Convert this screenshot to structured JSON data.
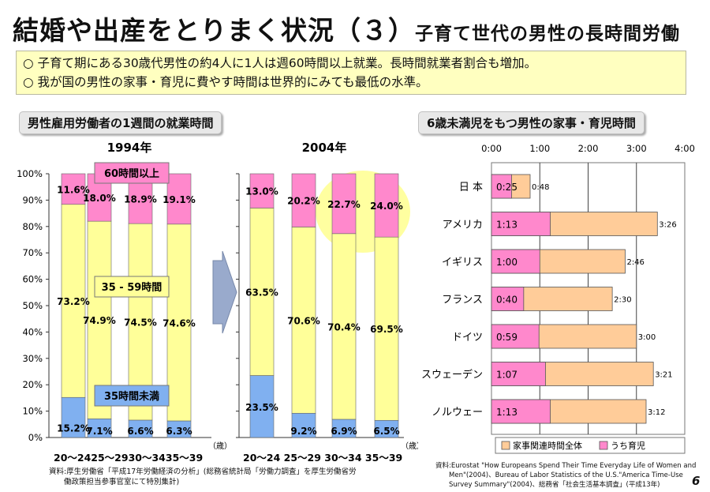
{
  "title": {
    "main": "結婚や出産をとりまく状況（３）",
    "sub": "子育て世代の男性の長時間労働"
  },
  "summary": [
    "○ 子育て期にある30歳代男性の約4人に1人は週60時間以上就業。長時間就業者割合も増加。",
    "○ 我が国の男性の家事・育児に費やす時間は世界的にみても最低の水準。"
  ],
  "left_section_label": "男性雇用労働者の1週間の就業時間",
  "right_section_label": "6歳未満児をもつ男性の家事・育児時間",
  "colors": {
    "under35": "#80b0f0",
    "mid": "#ffff99",
    "over60": "#ff88cc",
    "housework_total": "#ffcc99",
    "childcare": "#ff88cc",
    "highlight": "#ffff80",
    "arrow": "#99aacc"
  },
  "chart_data": [
    {
      "type": "bar",
      "stacked": true,
      "percent": true,
      "groups": [
        "1994年",
        "2004年"
      ],
      "categories": [
        "20～24",
        "25～29",
        "30～34",
        "35～39"
      ],
      "x_unit": "（歳）",
      "x_tick_labels": {
        "1994年": "20～2425～2930～3435～39",
        "2004年": "20～24 25～29 30～34 35～39"
      },
      "y_ticks": [
        "0%",
        "10%",
        "20%",
        "30%",
        "40%",
        "50%",
        "60%",
        "70%",
        "80%",
        "90%",
        "100%"
      ],
      "ylim": [
        0,
        100
      ],
      "series": [
        {
          "name": "35時間未満",
          "values_1994": [
            15.2,
            7.1,
            6.6,
            6.3
          ],
          "values_2004": [
            23.5,
            9.2,
            6.9,
            6.5
          ]
        },
        {
          "name": "35 - 59時間",
          "values_1994": [
            73.2,
            74.9,
            74.5,
            74.6
          ],
          "values_2004": [
            63.5,
            70.6,
            70.4,
            69.5
          ]
        },
        {
          "name": "60時間以上",
          "values_1994": [
            11.6,
            18.0,
            18.9,
            19.1
          ],
          "values_2004": [
            13.0,
            20.2,
            22.7,
            24.0
          ]
        }
      ],
      "data_labels_1994": [
        [
          "15.2%",
          "7.1%",
          "6.6%",
          "6.3%"
        ],
        [
          "73.2%",
          "74.9%",
          "74.5%",
          "74.6%"
        ],
        [
          "11.6%",
          "18.0%",
          "18.9%",
          "19.1%"
        ]
      ],
      "data_labels_2004": [
        [
          "23.5%",
          "9.2%",
          "6.9%",
          "6.5%"
        ],
        [
          "63.5%",
          "70.6%",
          "70.4%",
          "69.5%"
        ],
        [
          "13.0%",
          "20.2%",
          "22.7%",
          "24.0%"
        ]
      ],
      "grid": false
    },
    {
      "type": "bar",
      "orientation": "horizontal",
      "categories": [
        "日 本",
        "アメリカ",
        "イギリス",
        "フランス",
        "ドイツ",
        "スウェーデン",
        "ノルウェー"
      ],
      "x_ticks": [
        "0:00",
        "1:00",
        "2:00",
        "3:00",
        "4:00"
      ],
      "xlim_hours": [
        0,
        4
      ],
      "series": [
        {
          "name": "家事関連時間全体",
          "values_hours": [
            0.8,
            3.4333,
            2.7667,
            2.5,
            3.0,
            3.35,
            3.2
          ],
          "labels": [
            "0:48",
            "3:26",
            "2:46",
            "2:30",
            "3:00",
            "3:21",
            "3:12"
          ]
        },
        {
          "name": "うち育児",
          "values_hours": [
            0.4167,
            1.2167,
            1.0,
            0.6667,
            0.9833,
            1.1167,
            1.2167
          ],
          "labels": [
            "0:25",
            "1:13",
            "1:00",
            "0:40",
            "0:59",
            "1:07",
            "1:13"
          ]
        }
      ],
      "legend_position": "bottom",
      "grid": true
    }
  ],
  "source_left": [
    "資料:厚生労働省「平成17年労働経済の分析」(総務省統計局「労働力調査」を厚生労働省労",
    "　　働政策担当参事官室にて特別集計)"
  ],
  "source_right": [
    "資料:Eurostat \"How Europeans Spend Their Time Everyday Life of Women and",
    "　　Men\"(2004)、Bureau of Labor Statistics of the U.S.\"America Time-Use",
    "　　Survey Summary\"(2004)、総務省「社会生活基本調査」(平成13年)"
  ],
  "page_number": "6"
}
